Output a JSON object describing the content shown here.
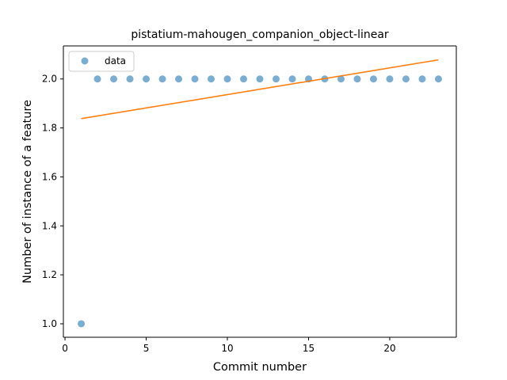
{
  "chart_data": {
    "type": "scatter",
    "title": "pistatium-mahougen_companion_object-linear",
    "xlabel": "Commit number",
    "ylabel": "Number of instance of a feature",
    "xlim": [
      -0.1,
      24.1
    ],
    "ylim": [
      0.945,
      2.135
    ],
    "xticks": [
      0,
      5,
      10,
      15,
      20
    ],
    "xtick_labels": [
      "0",
      "5",
      "10",
      "15",
      "20"
    ],
    "yticks": [
      1.0,
      1.2,
      1.4,
      1.6,
      1.8,
      2.0
    ],
    "ytick_labels": [
      "1.0",
      "1.2",
      "1.4",
      "1.6",
      "1.8",
      "2.0"
    ],
    "grid": false,
    "legend_position": "top-left",
    "colors": {
      "data": "#1f77b4",
      "fit": "#ff7f0e"
    },
    "series": [
      {
        "name": "data",
        "kind": "scatter",
        "x": [
          1,
          2,
          3,
          4,
          5,
          6,
          7,
          8,
          9,
          10,
          11,
          12,
          13,
          14,
          15,
          16,
          17,
          18,
          19,
          20,
          21,
          22,
          23
        ],
        "y": [
          1,
          2,
          2,
          2,
          2,
          2,
          2,
          2,
          2,
          2,
          2,
          2,
          2,
          2,
          2,
          2,
          2,
          2,
          2,
          2,
          2,
          2,
          2
        ]
      },
      {
        "kind": "line",
        "x": [
          1,
          23
        ],
        "y": [
          1.838,
          2.078
        ]
      }
    ],
    "legend": [
      "data"
    ]
  }
}
